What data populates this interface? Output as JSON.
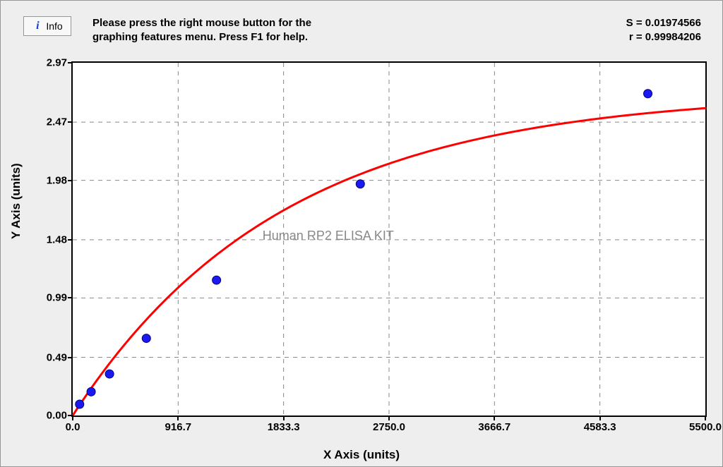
{
  "info_button": {
    "label": "Info"
  },
  "instructions": {
    "line1": "Please press the right mouse button for the",
    "line2": "graphing features menu.  Press F1 for help."
  },
  "stats": {
    "s_label": "S = 0.01974566",
    "r_label": "r = 0.99984206"
  },
  "watermark": "Human RP2 ELISA KIT",
  "axes": {
    "x_title": "X Axis (units)",
    "y_title": "Y Axis (units)",
    "x_ticks": [
      {
        "v": 0.0,
        "label": "0.0"
      },
      {
        "v": 916.7,
        "label": "916.7"
      },
      {
        "v": 1833.3,
        "label": "1833.3"
      },
      {
        "v": 2750.0,
        "label": "2750.0"
      },
      {
        "v": 3666.7,
        "label": "3666.7"
      },
      {
        "v": 4583.3,
        "label": "4583.3"
      },
      {
        "v": 5500.0,
        "label": "5500.0"
      }
    ],
    "y_ticks": [
      {
        "v": 0.0,
        "label": "0.00"
      },
      {
        "v": 0.49,
        "label": "0.49"
      },
      {
        "v": 0.99,
        "label": "0.99"
      },
      {
        "v": 1.48,
        "label": "1.48"
      },
      {
        "v": 1.98,
        "label": "1.98"
      },
      {
        "v": 2.47,
        "label": "2.47"
      },
      {
        "v": 2.97,
        "label": "2.97"
      }
    ],
    "xlim": [
      0,
      5500
    ],
    "ylim": [
      0,
      2.97
    ]
  },
  "chart": {
    "type": "scatter_with_curve",
    "background_color": "#ffffff",
    "grid_color": "#888888",
    "grid_dash": "6,6",
    "curve_color": "#ff0000",
    "curve_width": 3,
    "marker_fill": "#1a1af0",
    "marker_stroke": "#000080",
    "marker_radius": 6,
    "asymptote": 2.72,
    "rate_k": 0.00055,
    "points": [
      {
        "x": 60,
        "y": 0.095
      },
      {
        "x": 160,
        "y": 0.2
      },
      {
        "x": 320,
        "y": 0.35
      },
      {
        "x": 640,
        "y": 0.65
      },
      {
        "x": 1250,
        "y": 1.14
      },
      {
        "x": 2500,
        "y": 1.95
      },
      {
        "x": 5000,
        "y": 2.71
      }
    ]
  }
}
